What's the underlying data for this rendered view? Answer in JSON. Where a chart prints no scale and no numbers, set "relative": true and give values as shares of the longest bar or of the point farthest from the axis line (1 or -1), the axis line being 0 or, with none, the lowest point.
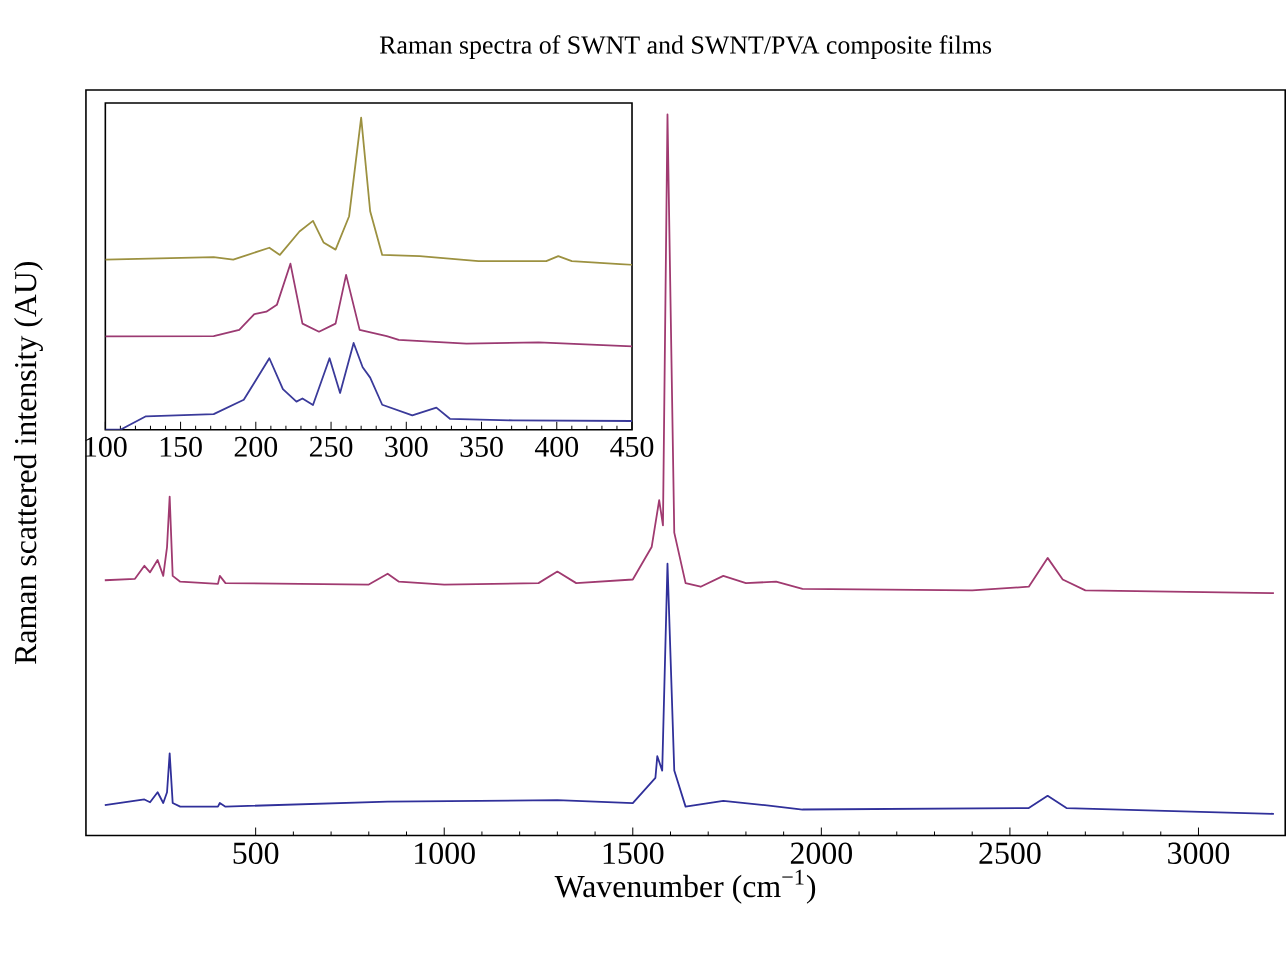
{
  "chart_data": [
    {
      "type": "line",
      "title": "Raman spectra of SWNT and SWNT/PVA composite films",
      "xlabel": "Wavenumber (cm$^{−1}$)",
      "ylabel": "Raman scattered intensity (AU)",
      "relative": true,
      "xlim": [
        50,
        3230
      ],
      "xticks": [
        500,
        1000,
        1500,
        2000,
        2500,
        3000
      ],
      "tick_labels": "x",
      "series": [
        {
          "color": "#a03a70",
          "x": [
            100,
            180,
            205,
            220,
            240,
            255,
            265,
            272,
            280,
            300,
            400,
            405,
            420,
            800,
            850,
            880,
            1000,
            1250,
            1300,
            1350,
            1500,
            1550,
            1570,
            1580,
            1592,
            1610,
            1640,
            1680,
            1740,
            1800,
            1880,
            1950,
            2400,
            2550,
            2600,
            2640,
            2700,
            3200
          ],
          "values": [
            0.354,
            0.356,
            0.374,
            0.365,
            0.382,
            0.36,
            0.4,
            0.47,
            0.36,
            0.352,
            0.349,
            0.36,
            0.35,
            0.348,
            0.363,
            0.352,
            0.348,
            0.35,
            0.366,
            0.35,
            0.355,
            0.4,
            0.465,
            0.43,
            1.0,
            0.42,
            0.35,
            0.345,
            0.36,
            0.35,
            0.352,
            0.342,
            0.34,
            0.345,
            0.385,
            0.355,
            0.34,
            0.336
          ]
        },
        {
          "color": "#30309a",
          "x": [
            100,
            205,
            220,
            240,
            255,
            265,
            272,
            280,
            300,
            400,
            405,
            420,
            850,
            1300,
            1500,
            1560,
            1565,
            1578,
            1592,
            1610,
            1640,
            1740,
            1850,
            1950,
            2550,
            2600,
            2650,
            3200
          ],
          "values": [
            0.042,
            0.05,
            0.046,
            0.06,
            0.045,
            0.06,
            0.114,
            0.045,
            0.04,
            0.04,
            0.045,
            0.04,
            0.047,
            0.049,
            0.045,
            0.08,
            0.11,
            0.09,
            0.377,
            0.09,
            0.04,
            0.048,
            0.042,
            0.036,
            0.038,
            0.055,
            0.038,
            0.03
          ]
        }
      ]
    },
    {
      "type": "line",
      "relative": true,
      "xlim": [
        100,
        450
      ],
      "xticks": [
        100,
        150,
        200,
        250,
        300,
        350,
        400,
        450
      ],
      "tick_labels": "x",
      "series": [
        {
          "color": "#9c9140",
          "x": [
            100,
            172,
            185,
            209,
            216,
            229,
            238,
            245,
            253,
            262,
            270,
            276,
            284,
            309,
            348,
            393,
            401,
            410,
            450
          ],
          "values": [
            0.545,
            0.553,
            0.545,
            0.583,
            0.56,
            0.635,
            0.669,
            0.6,
            0.577,
            0.684,
            1.0,
            0.7,
            0.56,
            0.556,
            0.54,
            0.54,
            0.556,
            0.54,
            0.528
          ]
        },
        {
          "color": "#9b3a72",
          "x": [
            100,
            172,
            189,
            199,
            207,
            214,
            223,
            231,
            242,
            253,
            260,
            269,
            287,
            295,
            340,
            388,
            450
          ],
          "values": [
            0.299,
            0.3,
            0.32,
            0.37,
            0.378,
            0.4,
            0.532,
            0.34,
            0.314,
            0.34,
            0.496,
            0.32,
            0.3,
            0.288,
            0.276,
            0.28,
            0.267
          ]
        },
        {
          "color": "#3a3a9a",
          "x": [
            100,
            110,
            127,
            172,
            192,
            209,
            218,
            227,
            231,
            238,
            249,
            256,
            265,
            271,
            276,
            284,
            304,
            320,
            329,
            371,
            450
          ],
          "values": [
            0.0,
            0.0,
            0.043,
            0.05,
            0.096,
            0.229,
            0.13,
            0.09,
            0.1,
            0.079,
            0.229,
            0.118,
            0.278,
            0.2,
            0.167,
            0.08,
            0.046,
            0.071,
            0.035,
            0.03,
            0.028
          ]
        }
      ]
    }
  ]
}
